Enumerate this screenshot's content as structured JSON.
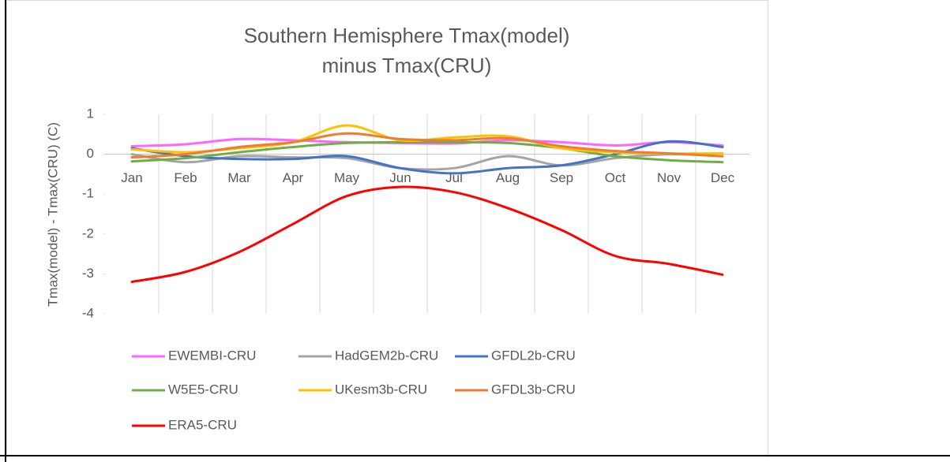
{
  "chart_data": {
    "type": "line",
    "title": "Southern Hemisphere Tmax(model) minus Tmax(CRU)",
    "y_label": "Tmax(model) - Tmax(CRU) (C)",
    "categories": [
      "Jan",
      "Feb",
      "Mar",
      "Apr",
      "May",
      "Jun",
      "Jul",
      "Aug",
      "Sep",
      "Oct",
      "Nov",
      "Dec"
    ],
    "ylim": [
      -4,
      1
    ],
    "yticks": [
      -4,
      -3,
      -2,
      -1,
      0,
      1
    ],
    "grid": true,
    "legend": "bottom",
    "smooth": true,
    "series": [
      {
        "name": "EWEMBI-CRU",
        "color": "#ff66ff",
        "values": [
          0.2,
          0.25,
          0.38,
          0.35,
          0.3,
          0.28,
          0.27,
          0.35,
          0.3,
          0.22,
          0.3,
          0.22
        ]
      },
      {
        "name": "HadGEM2b-CRU",
        "color": "#a5a5a5",
        "values": [
          0.0,
          -0.2,
          -0.05,
          -0.08,
          -0.1,
          -0.35,
          -0.35,
          -0.05,
          -0.28,
          -0.1,
          0.0,
          -0.05
        ]
      },
      {
        "name": "GFDL2b-CRU",
        "color": "#4472c4",
        "values": [
          0.15,
          -0.05,
          -0.12,
          -0.12,
          -0.05,
          -0.35,
          -0.48,
          -0.35,
          -0.28,
          0.0,
          0.32,
          0.18
        ]
      },
      {
        "name": "W5E5-CRU",
        "color": "#70ad47",
        "values": [
          -0.18,
          -0.1,
          0.05,
          0.18,
          0.28,
          0.3,
          0.3,
          0.28,
          0.15,
          -0.05,
          -0.15,
          -0.2
        ]
      },
      {
        "name": "UKesm3b-CRU",
        "color": "#ffc000",
        "values": [
          0.12,
          0.05,
          0.15,
          0.3,
          0.72,
          0.35,
          0.42,
          0.45,
          0.15,
          0.05,
          0.02,
          0.02
        ]
      },
      {
        "name": "GFDL3b-CRU",
        "color": "#ed7d31",
        "values": [
          -0.08,
          0.0,
          0.18,
          0.3,
          0.52,
          0.38,
          0.35,
          0.4,
          0.2,
          0.08,
          0.02,
          -0.05
        ]
      },
      {
        "name": "ERA5-CRU",
        "color": "#ff0000",
        "values": [
          -3.2,
          -2.95,
          -2.45,
          -1.75,
          -1.05,
          -0.82,
          -0.95,
          -1.35,
          -1.9,
          -2.55,
          -2.75,
          -3.02
        ]
      }
    ]
  }
}
